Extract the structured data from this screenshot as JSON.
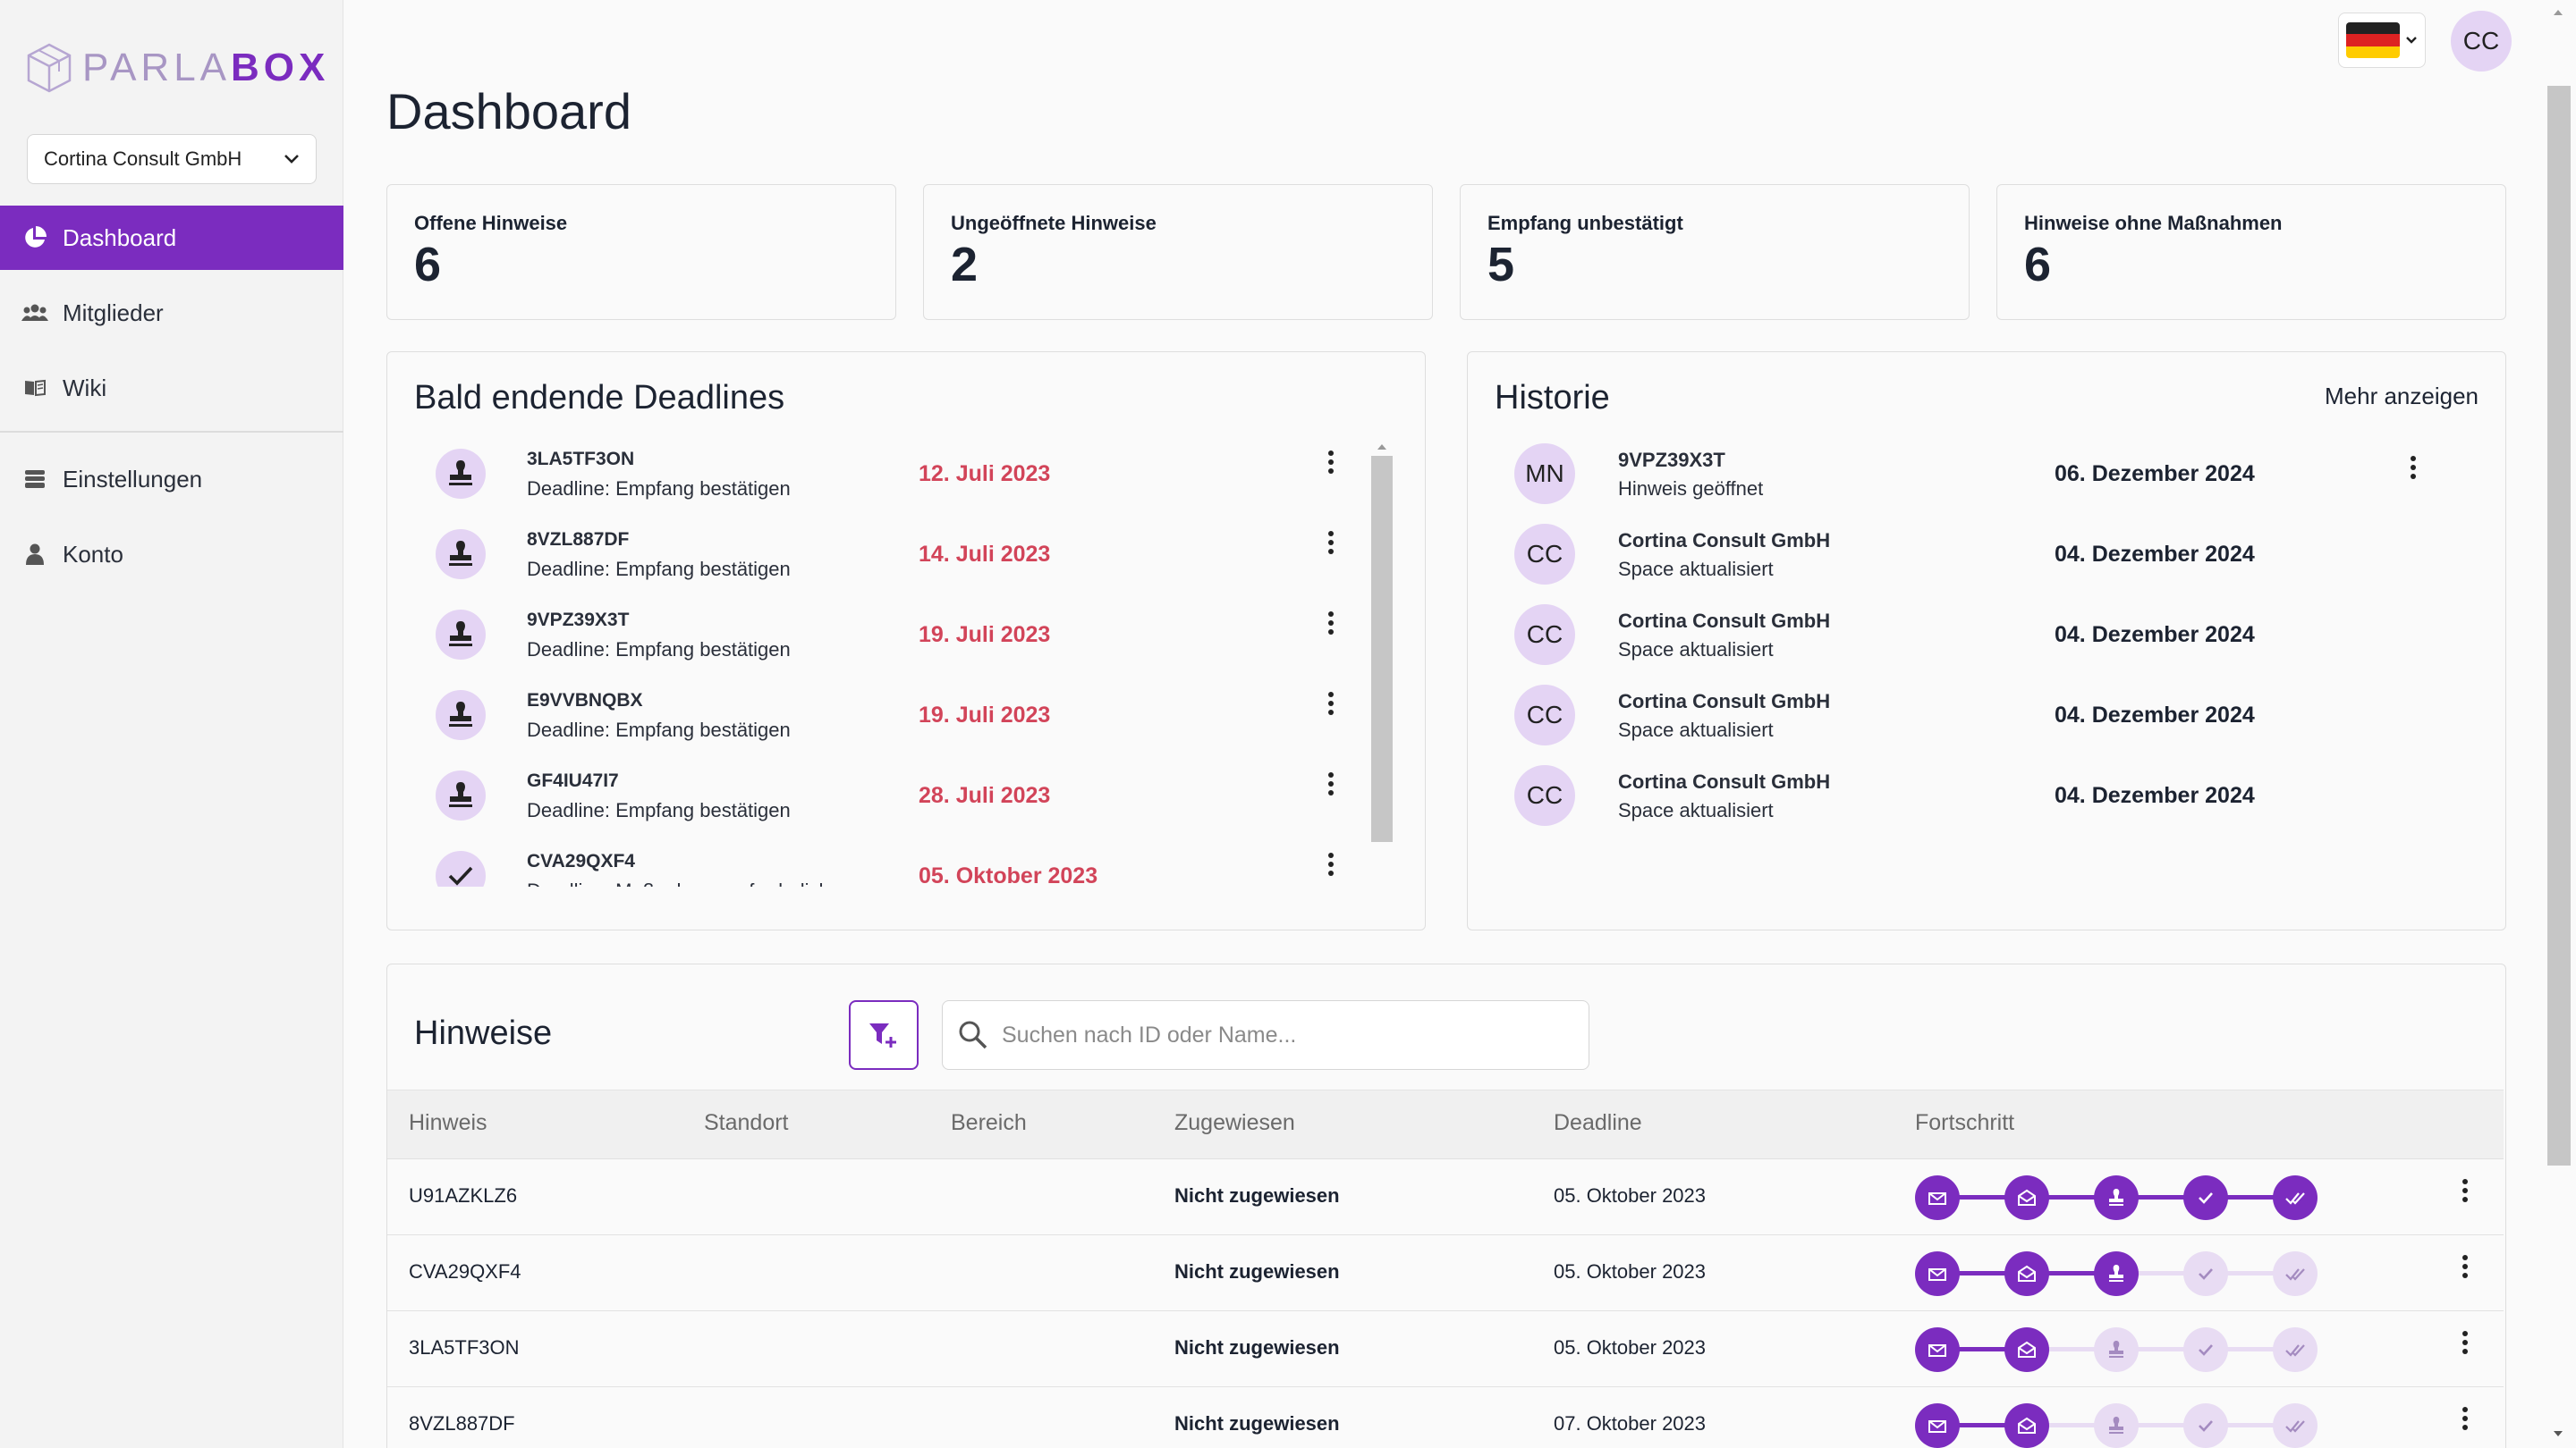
{
  "brand": {
    "logo_light": "PARLA",
    "logo_bold": "BOX"
  },
  "org_select": {
    "value": "Cortina Consult GmbH"
  },
  "nav": {
    "items": [
      {
        "label": "Dashboard",
        "icon": "pie-chart-icon",
        "active": true
      },
      {
        "label": "Mitglieder",
        "icon": "users-icon"
      },
      {
        "label": "Wiki",
        "icon": "book-icon"
      }
    ],
    "items2": [
      {
        "label": "Einstellungen",
        "icon": "stack-icon"
      },
      {
        "label": "Konto",
        "icon": "person-icon"
      }
    ]
  },
  "topbar": {
    "language": "de",
    "user_initials": "CC"
  },
  "page": {
    "title": "Dashboard"
  },
  "stats": [
    {
      "label": "Offene Hinweise",
      "value": "6"
    },
    {
      "label": "Ungeöffnete Hinweise",
      "value": "2"
    },
    {
      "label": "Empfang unbestätigt",
      "value": "5"
    },
    {
      "label": "Hinweise ohne Maßnahmen",
      "value": "6"
    }
  ],
  "deadlines": {
    "title": "Bald endende Deadlines",
    "items": [
      {
        "id": "3LA5TF3ON",
        "sub": "Deadline: Empfang bestätigen",
        "date": "12. Juli 2023",
        "icon": "stamp-icon"
      },
      {
        "id": "8VZL887DF",
        "sub": "Deadline: Empfang bestätigen",
        "date": "14. Juli 2023",
        "icon": "stamp-icon"
      },
      {
        "id": "9VPZ39X3T",
        "sub": "Deadline: Empfang bestätigen",
        "date": "19. Juli 2023",
        "icon": "stamp-icon"
      },
      {
        "id": "E9VVBNQBX",
        "sub": "Deadline: Empfang bestätigen",
        "date": "19. Juli 2023",
        "icon": "stamp-icon"
      },
      {
        "id": "GF4IU47I7",
        "sub": "Deadline: Empfang bestätigen",
        "date": "28. Juli 2023",
        "icon": "stamp-icon"
      },
      {
        "id": "CVA29QXF4",
        "sub": "Deadline: Maßnahmen erforderlich",
        "date": "05. Oktober 2023",
        "icon": "check-icon"
      }
    ]
  },
  "history": {
    "title": "Historie",
    "more_label": "Mehr anzeigen",
    "items": [
      {
        "initials": "MN",
        "name": "9VPZ39X3T",
        "sub": "Hinweis geöffnet",
        "date": "06. Dezember 2024"
      },
      {
        "initials": "CC",
        "name": "Cortina Consult GmbH",
        "sub": "Space aktualisiert",
        "date": "04. Dezember 2024"
      },
      {
        "initials": "CC",
        "name": "Cortina Consult GmbH",
        "sub": "Space aktualisiert",
        "date": "04. Dezember 2024"
      },
      {
        "initials": "CC",
        "name": "Cortina Consult GmbH",
        "sub": "Space aktualisiert",
        "date": "04. Dezember 2024"
      },
      {
        "initials": "CC",
        "name": "Cortina Consult GmbH",
        "sub": "Space aktualisiert",
        "date": "04. Dezember 2024"
      }
    ]
  },
  "hinweise": {
    "title": "Hinweise",
    "search_placeholder": "Suchen nach ID oder Name...",
    "columns": [
      "Hinweis",
      "Standort",
      "Bereich",
      "Zugewiesen",
      "Deadline",
      "Fortschritt"
    ],
    "rows": [
      {
        "id": "U91AZKLZ6",
        "standort": "",
        "bereich": "",
        "zugewiesen": "Nicht zugewiesen",
        "deadline": "05. Oktober 2023",
        "progress_steps_done": 5
      },
      {
        "id": "CVA29QXF4",
        "standort": "",
        "bereich": "",
        "zugewiesen": "Nicht zugewiesen",
        "deadline": "05. Oktober 2023",
        "progress_steps_done": 3
      },
      {
        "id": "3LA5TF3ON",
        "standort": "",
        "bereich": "",
        "zugewiesen": "Nicht zugewiesen",
        "deadline": "05. Oktober 2023",
        "progress_steps_done": 2
      },
      {
        "id": "8VZL887DF",
        "standort": "",
        "bereich": "",
        "zugewiesen": "Nicht zugewiesen",
        "deadline": "07. Oktober 2023",
        "progress_steps_done": 2
      }
    ]
  },
  "colors": {
    "accent": "#7b2cbf",
    "accent_light": "#e4d4f4",
    "deadline_red": "#d24459"
  }
}
